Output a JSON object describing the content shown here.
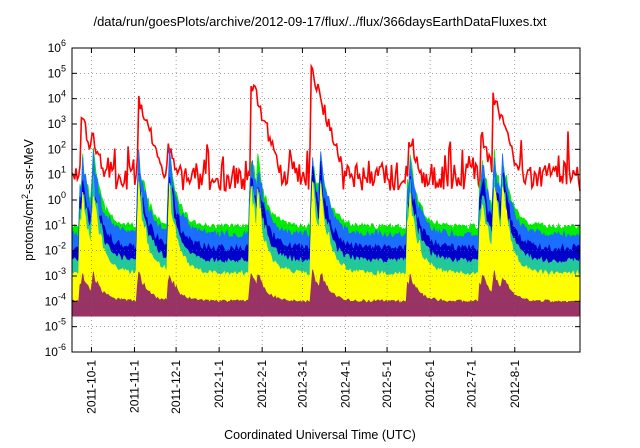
{
  "chart_data": {
    "type": "area",
    "title": "/data/run/goesPlots/archive/2012-09-17/flux/../flux/366daysEarthDataFluxes.txt",
    "xlabel": "Coordinated Universal Time (UTC)",
    "ylabel": "protons/cm²-s-sr-MeV",
    "y_scale": "log",
    "ylim": [
      1e-06,
      1000000.0
    ],
    "y_ticks": [
      {
        "value": -6,
        "label": "10-6"
      },
      {
        "value": -5,
        "label": "10-5"
      },
      {
        "value": -4,
        "label": "10-4"
      },
      {
        "value": -3,
        "label": "10-3"
      },
      {
        "value": -2,
        "label": "10-2"
      },
      {
        "value": -1,
        "label": "10-1"
      },
      {
        "value": 0,
        "label": "10⁰"
      },
      {
        "value": 1,
        "label": "10¹"
      },
      {
        "value": 2,
        "label": "10²"
      },
      {
        "value": 3,
        "label": "10³"
      },
      {
        "value": 4,
        "label": "10⁴"
      },
      {
        "value": 5,
        "label": "10⁵"
      },
      {
        "value": 6,
        "label": "10⁶"
      }
    ],
    "x_ticks": [
      "2011-10-1",
      "2011-11-1",
      "2011-12-1",
      "2012-1-1",
      "2012-2-1",
      "2012-3-1",
      "2012-4-1",
      "2012-5-1",
      "2012-6-1",
      "2012-7-1",
      "2012-8-1"
    ],
    "xlim": [
      "2011-09-17",
      "2012-09-17"
    ],
    "grid": true,
    "series": [
      {
        "color": "#ff0000",
        "baseline_log10": 0.9,
        "noise": 0.55
      },
      {
        "color": "#00ee00",
        "baseline_log10": -1.05,
        "noise": 0.12
      },
      {
        "color": "#1a6fff",
        "baseline_log10": -1.35,
        "noise": 0.15
      },
      {
        "color": "#0000cc",
        "baseline_log10": -1.9,
        "noise": 0.15
      },
      {
        "color": "#22c89a",
        "baseline_log10": -2.4,
        "noise": 0.12
      },
      {
        "color": "#ffff00",
        "baseline_log10": -2.9,
        "noise": 0.1
      },
      {
        "color": "#993366",
        "baseline_log10": -4.0,
        "noise": 0.06
      }
    ],
    "events": [
      {
        "date": "2011-09-24",
        "peak_log10": 3.2
      },
      {
        "date": "2011-10-02",
        "peak_log10": 2.5
      },
      {
        "date": "2011-11-04",
        "peak_log10": 4.0
      },
      {
        "date": "2011-11-26",
        "peak_log10": 2.0
      },
      {
        "date": "2012-01-24",
        "peak_log10": 4.7
      },
      {
        "date": "2012-01-28",
        "peak_log10": 3.5
      },
      {
        "date": "2012-03-08",
        "peak_log10": 5.0
      },
      {
        "date": "2012-03-14",
        "peak_log10": 3.2
      },
      {
        "date": "2012-05-17",
        "peak_log10": 2.5
      },
      {
        "date": "2012-07-08",
        "peak_log10": 2.5
      },
      {
        "date": "2012-07-17",
        "peak_log10": 4.1
      },
      {
        "date": "2012-07-23",
        "peak_log10": 3.0
      }
    ]
  }
}
